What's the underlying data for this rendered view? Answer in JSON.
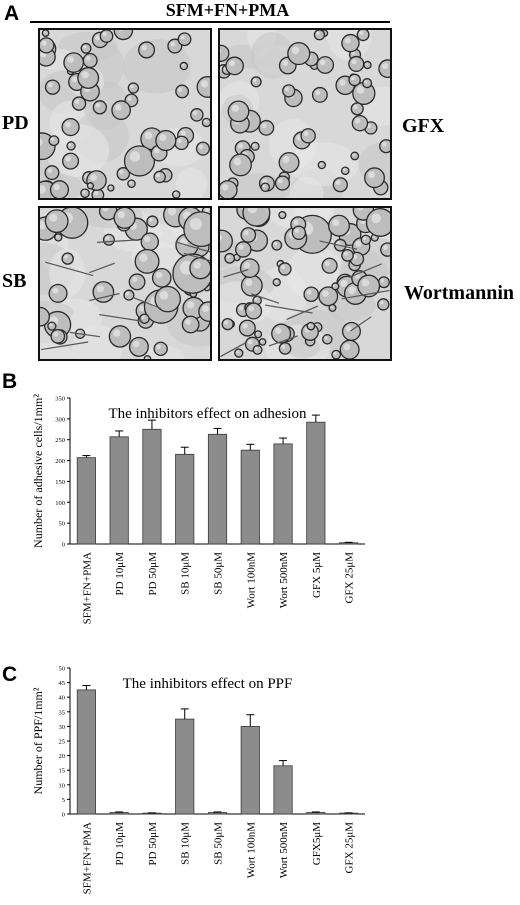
{
  "panel_labels": {
    "a": "A",
    "b": "B",
    "c": "C"
  },
  "header": {
    "title": "SFM+FN+PMA"
  },
  "micrographs": {
    "left_labels": [
      "PD",
      "SB"
    ],
    "right_labels": [
      "GFX",
      "Wortmannin"
    ]
  },
  "colors": {
    "bar_fill": "#8c8c8c",
    "axis": "#000000",
    "micro_bg": "#d8d8d8"
  },
  "chart_data": [
    {
      "type": "bar",
      "title": "The inhibitors effect on adhesion",
      "ylabel": "Number of adhesive cells/1mm²",
      "xlabel": "",
      "ylim": [
        0,
        350
      ],
      "yticks": [
        0,
        50,
        100,
        150,
        200,
        250,
        300,
        350
      ],
      "categories": [
        "SFM+FN+PMA",
        "PD 10μM",
        "PD 50μM",
        "SB 10μM",
        "SB 50μM",
        "Wort 100nM",
        "Wort 500nM",
        "GFX 5μM",
        "GFX 25μM"
      ],
      "values": [
        207,
        257,
        275,
        215,
        263,
        225,
        240,
        292,
        3
      ],
      "errors": [
        5,
        14,
        22,
        17,
        14,
        14,
        14,
        17,
        1
      ]
    },
    {
      "type": "bar",
      "title": "The inhibitors effect on PPF",
      "ylabel": "Number of PPF/1mm²",
      "xlabel": "",
      "ylim": [
        0,
        50
      ],
      "yticks": [
        0,
        5,
        10,
        15,
        20,
        25,
        30,
        35,
        40,
        45,
        50
      ],
      "categories": [
        "SFM+FN+PMA",
        "PD 10μM",
        "PD 50μM",
        "SB 10μM",
        "SB 50μM",
        "Wort 100nM",
        "Wort 500nM",
        "GFX5μM",
        "GFX 25μM"
      ],
      "values": [
        42.5,
        0.5,
        0.3,
        32.5,
        0.5,
        30,
        16.5,
        0.5,
        0.3
      ],
      "errors": [
        1.5,
        0.2,
        0.1,
        3.5,
        0.2,
        4,
        1.8,
        0.2,
        0.1
      ]
    }
  ]
}
